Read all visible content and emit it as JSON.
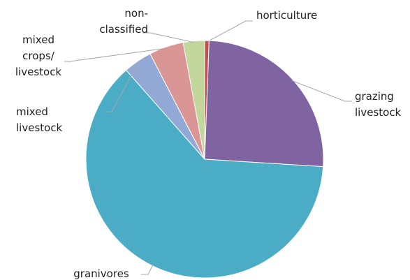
{
  "chart_data": {
    "type": "pie",
    "categories": [
      [
        "horticulture"
      ],
      [
        "grazing",
        "livestock"
      ],
      [
        "granivores"
      ],
      [
        "mixed",
        "livestock"
      ],
      [
        "mixed",
        "crops/",
        "livestock"
      ],
      [
        "non-",
        "classified"
      ]
    ],
    "values": [
      0.6,
      25.4,
      62.5,
      3.9,
      4.7,
      2.9
    ],
    "colors": [
      "#c0504d",
      "#8064a2",
      "#4bacc6",
      "#93a9d5",
      "#d99694",
      "#c3d69b"
    ]
  }
}
